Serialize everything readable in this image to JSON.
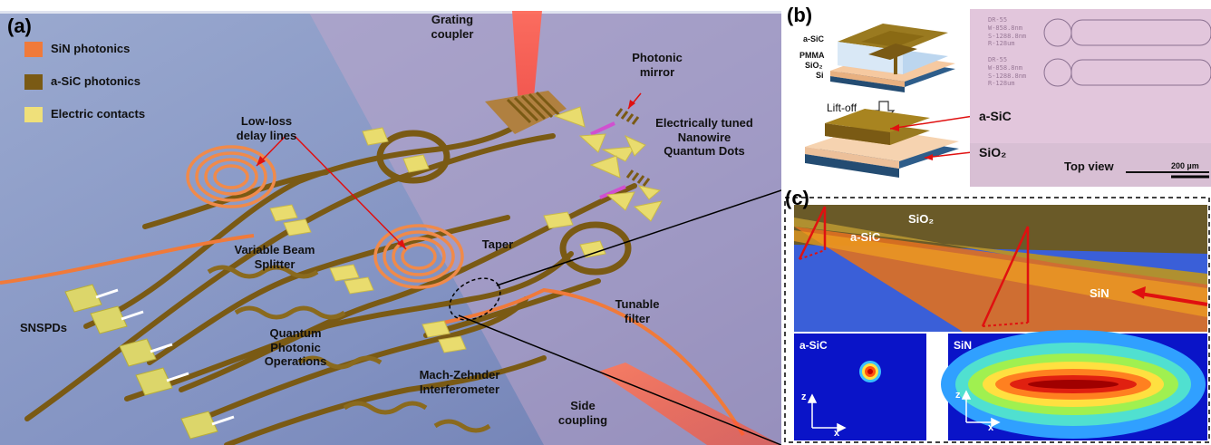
{
  "panels": {
    "a": "(a)",
    "b": "(b)",
    "c": "(c)"
  },
  "legend": [
    {
      "label": "SiN photonics",
      "color": "#f07a3a"
    },
    {
      "label": "a-SiC photonics",
      "color": "#7a5a14"
    },
    {
      "label": "Electric contacts",
      "color": "#efe07a"
    }
  ],
  "labels_a": {
    "grating_coupler": "Grating coupler",
    "photonic_mirror": "Photonic mirror",
    "electrically_tuned": "Electrically tuned Nanowire Quantum Dots",
    "low_loss": "Low-loss delay lines",
    "variable_bs": "Variable Beam Splitter",
    "taper": "Taper",
    "tunable_filter": "Tunable filter",
    "snspds": "SNSPDs",
    "quantum_ops": "Quantum Photonic Operations",
    "mzi": "Mach-Zehnder Interferometer",
    "side_coupling": "Side coupling"
  },
  "labels_b": {
    "layer_asic": "a-SiC",
    "layer_pmma": "PMMA",
    "layer_sio2": "SiO₂",
    "layer_si": "Si",
    "liftoff": "Lift-off",
    "asic_arrow": "a-SiC",
    "sio2_arrow": "SiO₂",
    "top_view": "Top view",
    "scale": "200 µm",
    "sample_text": [
      "DR-55",
      "W-858.8nm",
      "S-1288.8nm",
      "R-128um"
    ]
  },
  "labels_c": {
    "sio2": "SiO₂",
    "asic": "a-SiC",
    "sin": "SiN",
    "mode_asic": "a-SiC",
    "mode_sin": "SiN",
    "axis_z": "z",
    "axis_x": "x"
  },
  "colors": {
    "sin": "#f07a3a",
    "asic": "#7a5a14",
    "contacts": "#efe07a",
    "chip_bg": "#7d8fbf",
    "laser": "#ff5a4a",
    "mode_bg": "#0a0ad0"
  }
}
